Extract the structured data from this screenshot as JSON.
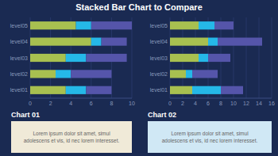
{
  "title": "Stacked Bar Chart to Compare",
  "chart_data": [
    {
      "type": "bar",
      "title": "Chart 01",
      "orientation": "horizontal",
      "stacked": true,
      "grid": true,
      "categories": [
        "level01",
        "level02",
        "level03",
        "level04",
        "level05"
      ],
      "series": [
        {
          "color": "#a8c050",
          "values": [
            3.5,
            2.5,
            3.5,
            6.0,
            4.5
          ]
        },
        {
          "color": "#25b8e8",
          "values": [
            2.0,
            1.5,
            2.0,
            1.0,
            1.5
          ]
        },
        {
          "color": "#5555aa",
          "values": [
            2.5,
            4.0,
            4.0,
            2.5,
            4.0
          ]
        }
      ],
      "xlim": [
        0,
        10
      ],
      "xticks": [
        0,
        2,
        4,
        6,
        8,
        10
      ],
      "annotations": [
        "Lorem ipsum dolor sit amet, simul\nadolescens et vis, id nec lorem interesset."
      ]
    },
    {
      "type": "bar",
      "title": "Chart 02",
      "orientation": "horizontal",
      "stacked": true,
      "grid": true,
      "categories": [
        "level01",
        "level02",
        "level03",
        "level04",
        "level05"
      ],
      "series": [
        {
          "color": "#a8c050",
          "values": [
            3.5,
            2.5,
            4.5,
            6.0,
            4.5
          ]
        },
        {
          "color": "#25b8e8",
          "values": [
            4.5,
            1.0,
            1.5,
            1.5,
            2.5
          ]
        },
        {
          "color": "#5555aa",
          "values": [
            3.5,
            4.0,
            3.5,
            7.0,
            3.0
          ]
        }
      ],
      "xlim": [
        0,
        16
      ],
      "xticks": [
        0,
        2,
        4,
        6,
        8,
        10,
        12,
        14,
        16
      ],
      "annotations": [
        "Lorem ipsum dolor sit amet, simul\nadolescens et vis, id nec lorem interesset."
      ]
    }
  ]
}
